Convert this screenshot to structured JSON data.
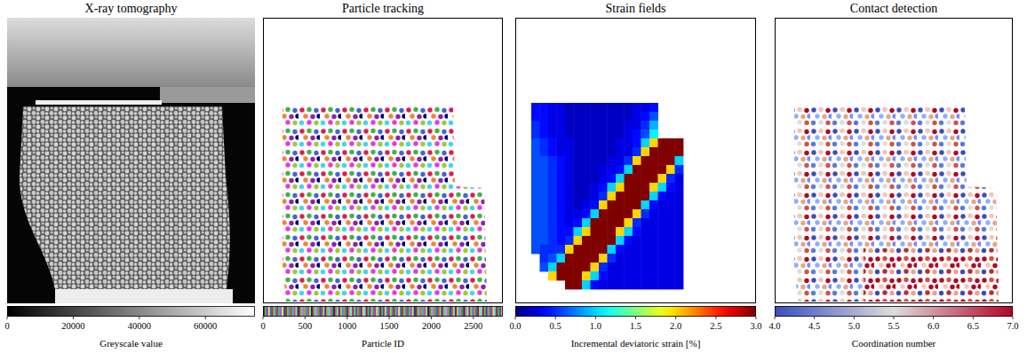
{
  "chart_data": [
    {
      "type": "image",
      "title": "X-ray tomography",
      "colorbar_label": "Greyscale value",
      "clim": [
        0,
        75000
      ],
      "cticks": [
        0,
        20000,
        40000,
        60000
      ]
    },
    {
      "type": "tracking",
      "title": "Particle tracking",
      "colorbar_label": "Particle ID",
      "clim": [
        0,
        2850
      ],
      "cticks": [
        0,
        500,
        1000,
        1500,
        2000,
        2500
      ]
    },
    {
      "type": "heatmap",
      "title": "Strain fields",
      "colorbar_label": "Incremental deviatoric strain [%]",
      "clim": [
        0,
        3
      ],
      "cticks": [
        {
          "value": 0,
          "label": "0.0"
        },
        0.5,
        {
          "value": 1,
          "label": "1.0"
        },
        1.5,
        {
          "value": 2,
          "label": "2.0"
        },
        2.5,
        {
          "value": 3,
          "label": "3.0"
        }
      ],
      "cells": [
        [
          0.4,
          0.4,
          0.3,
          0.3,
          0.2,
          0.2,
          0.2,
          0.2,
          0.2,
          0.2,
          0.2,
          0.2,
          0.3,
          0.3,
          0.4,
          null,
          null,
          null
        ],
        [
          0.4,
          0.4,
          0.3,
          0.3,
          0.2,
          0.2,
          0.2,
          0.2,
          0.2,
          0.2,
          0.2,
          0.2,
          0.3,
          0.4,
          0.6,
          null,
          null,
          null
        ],
        [
          0.5,
          0.4,
          0.3,
          0.3,
          0.2,
          0.2,
          0.2,
          0.2,
          0.2,
          0.2,
          0.2,
          0.3,
          0.3,
          0.5,
          0.9,
          null,
          null,
          null
        ],
        [
          0.5,
          0.4,
          0.3,
          0.3,
          0.2,
          0.2,
          0.2,
          0.2,
          0.2,
          0.2,
          0.2,
          0.3,
          0.4,
          0.6,
          1.1,
          null,
          null,
          null
        ],
        [
          0.6,
          0.5,
          0.4,
          0.3,
          0.3,
          0.2,
          0.2,
          0.2,
          0.2,
          0.2,
          0.3,
          0.3,
          0.4,
          1.0,
          2.0,
          3.0,
          3.0,
          3.0
        ],
        [
          0.6,
          0.5,
          0.4,
          0.3,
          0.3,
          0.2,
          0.2,
          0.2,
          0.2,
          0.2,
          0.3,
          0.3,
          0.5,
          2.0,
          3.0,
          3.0,
          3.0,
          3.0
        ],
        [
          0.6,
          0.6,
          0.5,
          0.4,
          0.3,
          0.2,
          0.2,
          0.2,
          0.2,
          0.3,
          0.3,
          0.5,
          2.0,
          3.0,
          3.0,
          3.0,
          3.0,
          1.0
        ],
        [
          0.6,
          0.6,
          0.5,
          0.4,
          0.3,
          0.2,
          0.2,
          0.2,
          0.3,
          0.3,
          0.4,
          1.0,
          3.0,
          3.0,
          3.0,
          3.0,
          2.0,
          0.5
        ],
        [
          0.6,
          0.6,
          0.5,
          0.4,
          0.3,
          0.2,
          0.2,
          0.2,
          0.3,
          0.4,
          1.0,
          3.0,
          3.0,
          3.0,
          3.0,
          2.0,
          0.5,
          0.3
        ],
        [
          0.6,
          0.6,
          0.5,
          0.4,
          0.3,
          0.2,
          0.2,
          0.3,
          0.4,
          1.0,
          2.0,
          3.0,
          3.0,
          3.0,
          2.0,
          1.0,
          0.4,
          0.3
        ],
        [
          0.6,
          0.6,
          0.5,
          0.4,
          0.3,
          0.2,
          0.2,
          0.3,
          0.5,
          2.0,
          3.0,
          3.0,
          3.0,
          3.0,
          1.0,
          0.4,
          0.3,
          0.3
        ],
        [
          0.6,
          0.6,
          0.5,
          0.4,
          0.3,
          0.2,
          0.3,
          0.4,
          2.0,
          3.0,
          3.0,
          3.0,
          3.0,
          1.0,
          0.4,
          0.3,
          0.3,
          0.3
        ],
        [
          0.6,
          0.6,
          0.5,
          0.4,
          0.3,
          0.3,
          0.4,
          1.0,
          3.0,
          3.0,
          3.0,
          3.0,
          2.0,
          0.5,
          0.3,
          0.3,
          0.3,
          0.3
        ],
        [
          0.6,
          0.6,
          0.5,
          0.4,
          0.3,
          0.4,
          1.0,
          3.0,
          3.0,
          3.0,
          3.0,
          2.0,
          0.5,
          0.3,
          0.3,
          0.3,
          0.3,
          0.3
        ],
        [
          0.6,
          0.6,
          0.5,
          0.4,
          0.4,
          1.0,
          2.0,
          3.0,
          3.0,
          3.0,
          2.0,
          1.0,
          0.4,
          0.3,
          0.3,
          0.3,
          0.3,
          0.3
        ],
        [
          0.6,
          0.6,
          0.5,
          0.4,
          0.5,
          2.0,
          3.0,
          3.0,
          3.0,
          3.0,
          1.0,
          0.4,
          0.3,
          0.3,
          0.3,
          0.3,
          0.3,
          0.3
        ],
        [
          0.6,
          0.5,
          0.5,
          0.5,
          2.0,
          3.0,
          3.0,
          3.0,
          3.0,
          1.0,
          0.4,
          0.3,
          0.3,
          0.3,
          0.3,
          0.3,
          0.3,
          0.3
        ],
        [
          null,
          0.5,
          0.6,
          1.0,
          3.0,
          3.0,
          3.0,
          3.0,
          2.0,
          0.5,
          0.3,
          0.3,
          0.3,
          0.3,
          0.3,
          0.3,
          0.3,
          0.3
        ],
        [
          null,
          0.6,
          1.0,
          3.0,
          3.0,
          3.0,
          3.0,
          2.0,
          0.5,
          0.3,
          0.3,
          0.3,
          0.3,
          0.3,
          0.3,
          0.3,
          0.3,
          0.3
        ],
        [
          null,
          null,
          2.0,
          3.0,
          3.0,
          3.0,
          2.0,
          1.0,
          0.4,
          0.3,
          0.3,
          0.3,
          0.3,
          0.3,
          0.3,
          0.3,
          0.3,
          0.3
        ],
        [
          null,
          null,
          null,
          null,
          3.0,
          3.0,
          1.0,
          0.4,
          0.3,
          0.3,
          0.3,
          0.3,
          0.3,
          0.3,
          0.3,
          0.3,
          0.3,
          0.3
        ]
      ]
    },
    {
      "type": "contacts",
      "title": "Contact detection",
      "colorbar_label": "Coordination number",
      "clim": [
        4,
        7
      ],
      "cticks": [
        {
          "value": 4,
          "label": "4.0"
        },
        4.5,
        {
          "value": 5,
          "label": "5.0"
        },
        5.5,
        {
          "value": 6,
          "label": "6.0"
        },
        6.5,
        {
          "value": 7,
          "label": "7.0"
        }
      ]
    }
  ]
}
